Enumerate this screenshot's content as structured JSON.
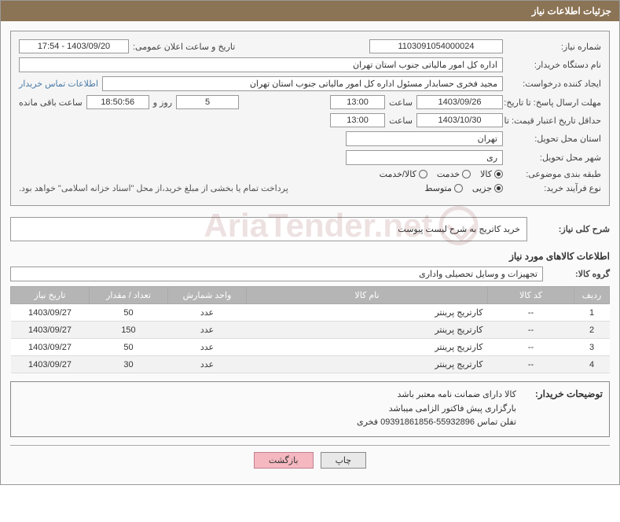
{
  "header": {
    "title": "جزئیات اطلاعات نیاز"
  },
  "fields": {
    "need_no_label": "شماره نیاز:",
    "need_no": "1103091054000024",
    "announce_dt_label": "تاریخ و ساعت اعلان عمومی:",
    "announce_dt": "1403/09/20 - 17:54",
    "buyer_org_label": "نام دستگاه خریدار:",
    "buyer_org": "اداره کل امور مالیاتی جنوب استان تهران",
    "requester_label": "ایجاد کننده درخواست:",
    "requester": "مجید فخری حسابدار مسئول اداره کل امور مالیاتی جنوب استان تهران",
    "contact_link": "اطلاعات تماس خریدار",
    "send_deadline_label": "مهلت ارسال پاسخ: تا تاریخ:",
    "send_deadline_date": "1403/09/26",
    "time_label": "ساعت",
    "send_deadline_time": "13:00",
    "days": "5",
    "days_and": "روز و",
    "remain_time": "18:50:56",
    "remain_label": "ساعت باقی مانده",
    "price_valid_label": "حداقل تاریخ اعتبار قیمت: تا تاریخ:",
    "price_valid_date": "1403/10/30",
    "price_valid_time": "13:00",
    "province_label": "استان محل تحویل:",
    "province": "تهران",
    "city_label": "شهر محل تحویل:",
    "city": "ری",
    "category_label": "طبقه بندی موضوعی:",
    "cat_opts": {
      "goods": "کالا",
      "service": "خدمت",
      "goods_service": "کالا/خدمت"
    },
    "process_label": "نوع فرآیند خرید:",
    "proc_opts": {
      "small": "جزیی",
      "medium": "متوسط"
    },
    "process_note": "پرداخت تمام یا بخشی از مبلغ خرید،از محل \"اسناد خزانه اسلامی\" خواهد بود.",
    "desc_label": "شرح کلی نیاز:",
    "desc": "خرید کاتریج به شرح لیست پیوست",
    "goods_info_title": "اطلاعات کالاهای مورد نیاز",
    "goods_group_label": "گروه کالا:",
    "goods_group": "تجهیزات و وسایل تحصیلی واداری"
  },
  "table": {
    "headers": {
      "row": "ردیف",
      "code": "کد کالا",
      "name": "نام کالا",
      "unit": "واحد شمارش",
      "qty": "تعداد / مقدار",
      "date": "تاریخ نیاز"
    },
    "rows": [
      {
        "row": "1",
        "code": "--",
        "name": "کارتریج پرینتر",
        "unit": "عدد",
        "qty": "50",
        "date": "1403/09/27"
      },
      {
        "row": "2",
        "code": "--",
        "name": "کارتریج پرینتر",
        "unit": "عدد",
        "qty": "150",
        "date": "1403/09/27"
      },
      {
        "row": "3",
        "code": "--",
        "name": "کارتریج پرینتر",
        "unit": "عدد",
        "qty": "50",
        "date": "1403/09/27"
      },
      {
        "row": "4",
        "code": "--",
        "name": "کارتریج پرینتر",
        "unit": "عدد",
        "qty": "30",
        "date": "1403/09/27"
      }
    ]
  },
  "buyer_notes": {
    "label": "توضیحات خریدار:",
    "line1": "کالا دارای ضمانت نامه معتبر باشد",
    "line2": "بارگزاری پیش فاکتور الزامی میباشد",
    "line3": "تفلن تماس 55932896-09391861856 فخری"
  },
  "buttons": {
    "print": "چاپ",
    "back": "بازگشت"
  },
  "watermark": "AriaTender.net",
  "colors": {
    "header_bg": "#8b7355",
    "th_bg": "#b5b5b5",
    "link": "#4a7ba8",
    "btn_back_bg": "#f5b8c0"
  }
}
